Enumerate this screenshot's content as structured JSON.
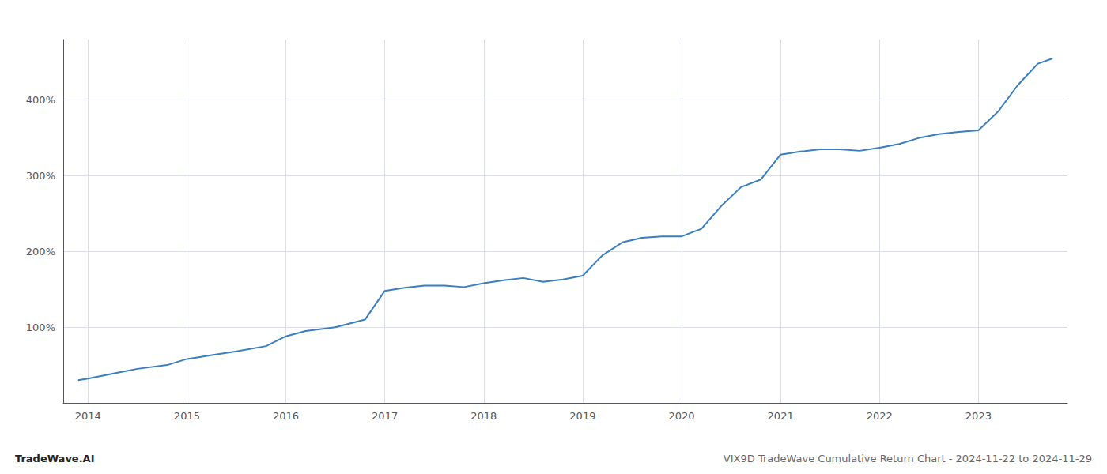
{
  "chart_data": {
    "type": "line",
    "title": "VIX9D TradeWave Cumulative Return Chart - 2024-11-22 to 2024-11-29",
    "annotations": [
      "TradeWave.AI"
    ],
    "x": [
      2013.9,
      2014.0,
      2014.3,
      2014.5,
      2014.8,
      2015.0,
      2015.2,
      2015.5,
      2015.8,
      2016.0,
      2016.2,
      2016.5,
      2016.8,
      2017.0,
      2017.2,
      2017.4,
      2017.6,
      2017.8,
      2018.0,
      2018.2,
      2018.4,
      2018.6,
      2018.8,
      2019.0,
      2019.2,
      2019.4,
      2019.6,
      2019.8,
      2020.0,
      2020.1,
      2020.2,
      2020.4,
      2020.6,
      2020.8,
      2021.0,
      2021.2,
      2021.4,
      2021.6,
      2021.8,
      2022.0,
      2022.2,
      2022.4,
      2022.6,
      2022.8,
      2023.0,
      2023.2,
      2023.4,
      2023.6,
      2023.75
    ],
    "values": [
      30,
      32,
      40,
      45,
      50,
      58,
      62,
      68,
      75,
      88,
      95,
      100,
      110,
      148,
      152,
      155,
      155,
      153,
      158,
      162,
      165,
      160,
      163,
      168,
      195,
      212,
      218,
      220,
      220,
      225,
      230,
      260,
      285,
      295,
      328,
      332,
      335,
      335,
      333,
      337,
      342,
      350,
      355,
      358,
      360,
      385,
      420,
      448,
      455
    ],
    "color": "#3a7ebf",
    "xlim": [
      2013.75,
      2023.9
    ],
    "ylim": [
      0,
      480
    ],
    "xticks": [
      2014,
      2015,
      2016,
      2017,
      2018,
      2019,
      2020,
      2021,
      2022,
      2023
    ],
    "yticks": [
      {
        "value": 100,
        "label": "100%"
      },
      {
        "value": 200,
        "label": "200%"
      },
      {
        "value": 300,
        "label": "300%"
      },
      {
        "value": 400,
        "label": "400%"
      }
    ],
    "grid": true
  }
}
